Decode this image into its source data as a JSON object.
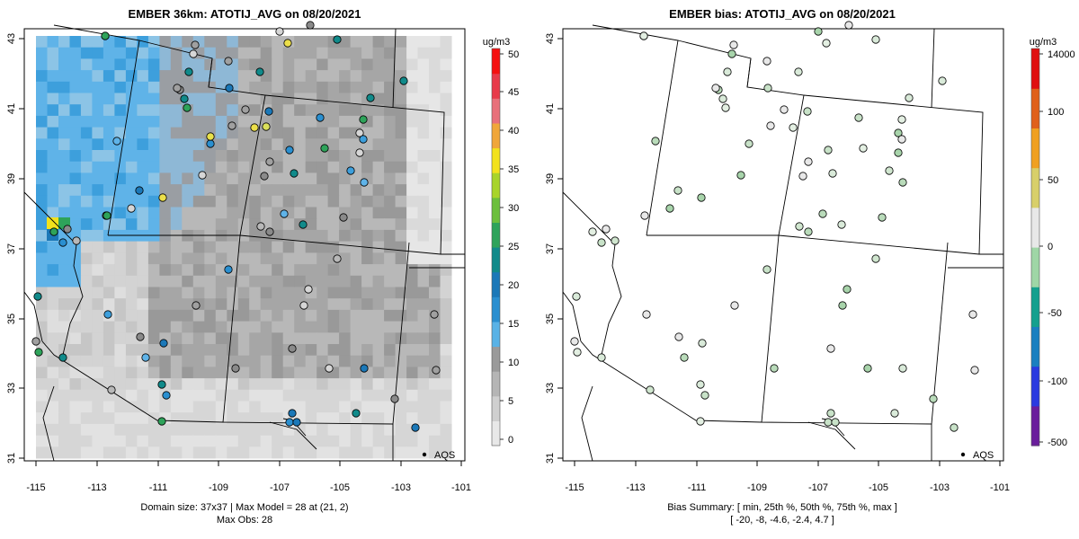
{
  "left": {
    "title": "EMBER 36km: ATOTIJ_AVG on 08/20/2021",
    "x_ticks": [
      "-115",
      "-113",
      "-111",
      "-109",
      "-107",
      "-105",
      "-103",
      "-101"
    ],
    "y_ticks": [
      "31",
      "33",
      "35",
      "37",
      "39",
      "41",
      "43"
    ],
    "colorbar_unit": "ug/m3",
    "colorbar_ticks": [
      "50",
      "45",
      "40",
      "35",
      "30",
      "25",
      "20",
      "15",
      "10",
      "5",
      "0"
    ],
    "legend_label": "AQS",
    "footer_line1": "Domain size: 37x37 | Max Model = 28 at (21, 2)",
    "footer_line2": "Max Obs: 28"
  },
  "right": {
    "title": "EMBER bias: ATOTIJ_AVG on 08/20/2021",
    "x_ticks": [
      "-115",
      "-113",
      "-111",
      "-109",
      "-107",
      "-105",
      "-103",
      "-101"
    ],
    "y_ticks": [
      "31",
      "33",
      "35",
      "37",
      "39",
      "41",
      "43"
    ],
    "colorbar_unit": "ug/m3",
    "colorbar_ticks": [
      "14000",
      "100",
      "50",
      "0",
      "-50",
      "-100",
      "-500"
    ],
    "legend_label": "AQS",
    "footer_line1": "Bias Summary: [ min, 25th %, 50th %, 75th %, max ]",
    "footer_line2": "[ -20,   -8,   -4.6,   -2.4,   4.7 ]"
  },
  "colors": {
    "conc_scale": [
      "#e8e8e8",
      "#cfcfcf",
      "#b5b5b5",
      "#9a9a9a",
      "#59b2e6",
      "#2a8fd0",
      "#1b78b8",
      "#108a8a",
      "#2ea35a",
      "#6cbf3c",
      "#a8d42a",
      "#f2e21c",
      "#f0a63a",
      "#e8707a",
      "#e83a4a",
      "#f51010"
    ],
    "bias_scale": [
      "#6a1d9c",
      "#2a3ae0",
      "#1a7fc0",
      "#14a08e",
      "#9fd6a6",
      "#e8e8e8",
      "#d8cf6a",
      "#f0a020",
      "#e0601a",
      "#e01010"
    ],
    "obs_outline": "#000000"
  }
}
